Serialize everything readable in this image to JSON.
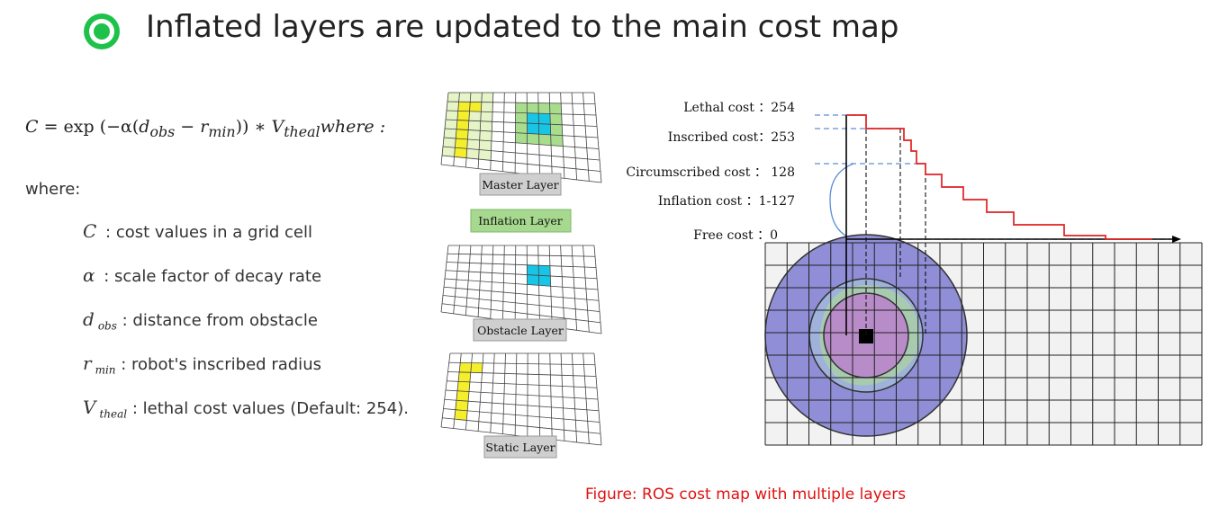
{
  "heading": "Inflated layers are updated to the main cost map",
  "formula": {
    "lhs": "C",
    "eq": " = exp (−α(",
    "d_sym": "d",
    "d_sub": "obs",
    "minus": " − ",
    "r_sym": "r",
    "r_sub": "min",
    "close": ")) ∗ ",
    "v_sym": "V",
    "v_sub": "theal",
    "tail": "where :"
  },
  "where_label": "where:",
  "definitions": [
    {
      "symbol": "C",
      "sub": "",
      "text": ": cost values in a grid cell"
    },
    {
      "symbol": "α",
      "sub": "",
      "text": ": scale factor of decay rate"
    },
    {
      "symbol": "d",
      "sub": "obs",
      "text": ": distance from obstacle"
    },
    {
      "symbol": "r",
      "sub": "min",
      "text": ": robot's inscribed radius"
    },
    {
      "symbol": "V",
      "sub": "theal",
      "text": ": lethal cost values (Default: 254)."
    }
  ],
  "layers": {
    "master": "Master Layer",
    "inflation": "Inflation Layer",
    "obstacle": "Obstacle Layer",
    "static": "Static Layer"
  },
  "cost_labels": {
    "lethal": "Lethal cost ：254",
    "inscribed": "Inscribed cost：253",
    "circumscribed": "Circumscribed cost ： 128",
    "inflation": "Inflation cost ：1-127",
    "free": "Free cost ：0"
  },
  "caption": "Figure: ROS cost map with multiple layers",
  "colors": {
    "bullet": "#1ec24a",
    "caption": "#e01010",
    "cost_curve": "#e02020",
    "static_cell": "#f5ee2a",
    "obstacle_cell": "#19c5e6",
    "inflation_cell": "#a9dd8e",
    "outer_circle": "#8f8ed6",
    "inner_circle": "#b88cc8"
  }
}
